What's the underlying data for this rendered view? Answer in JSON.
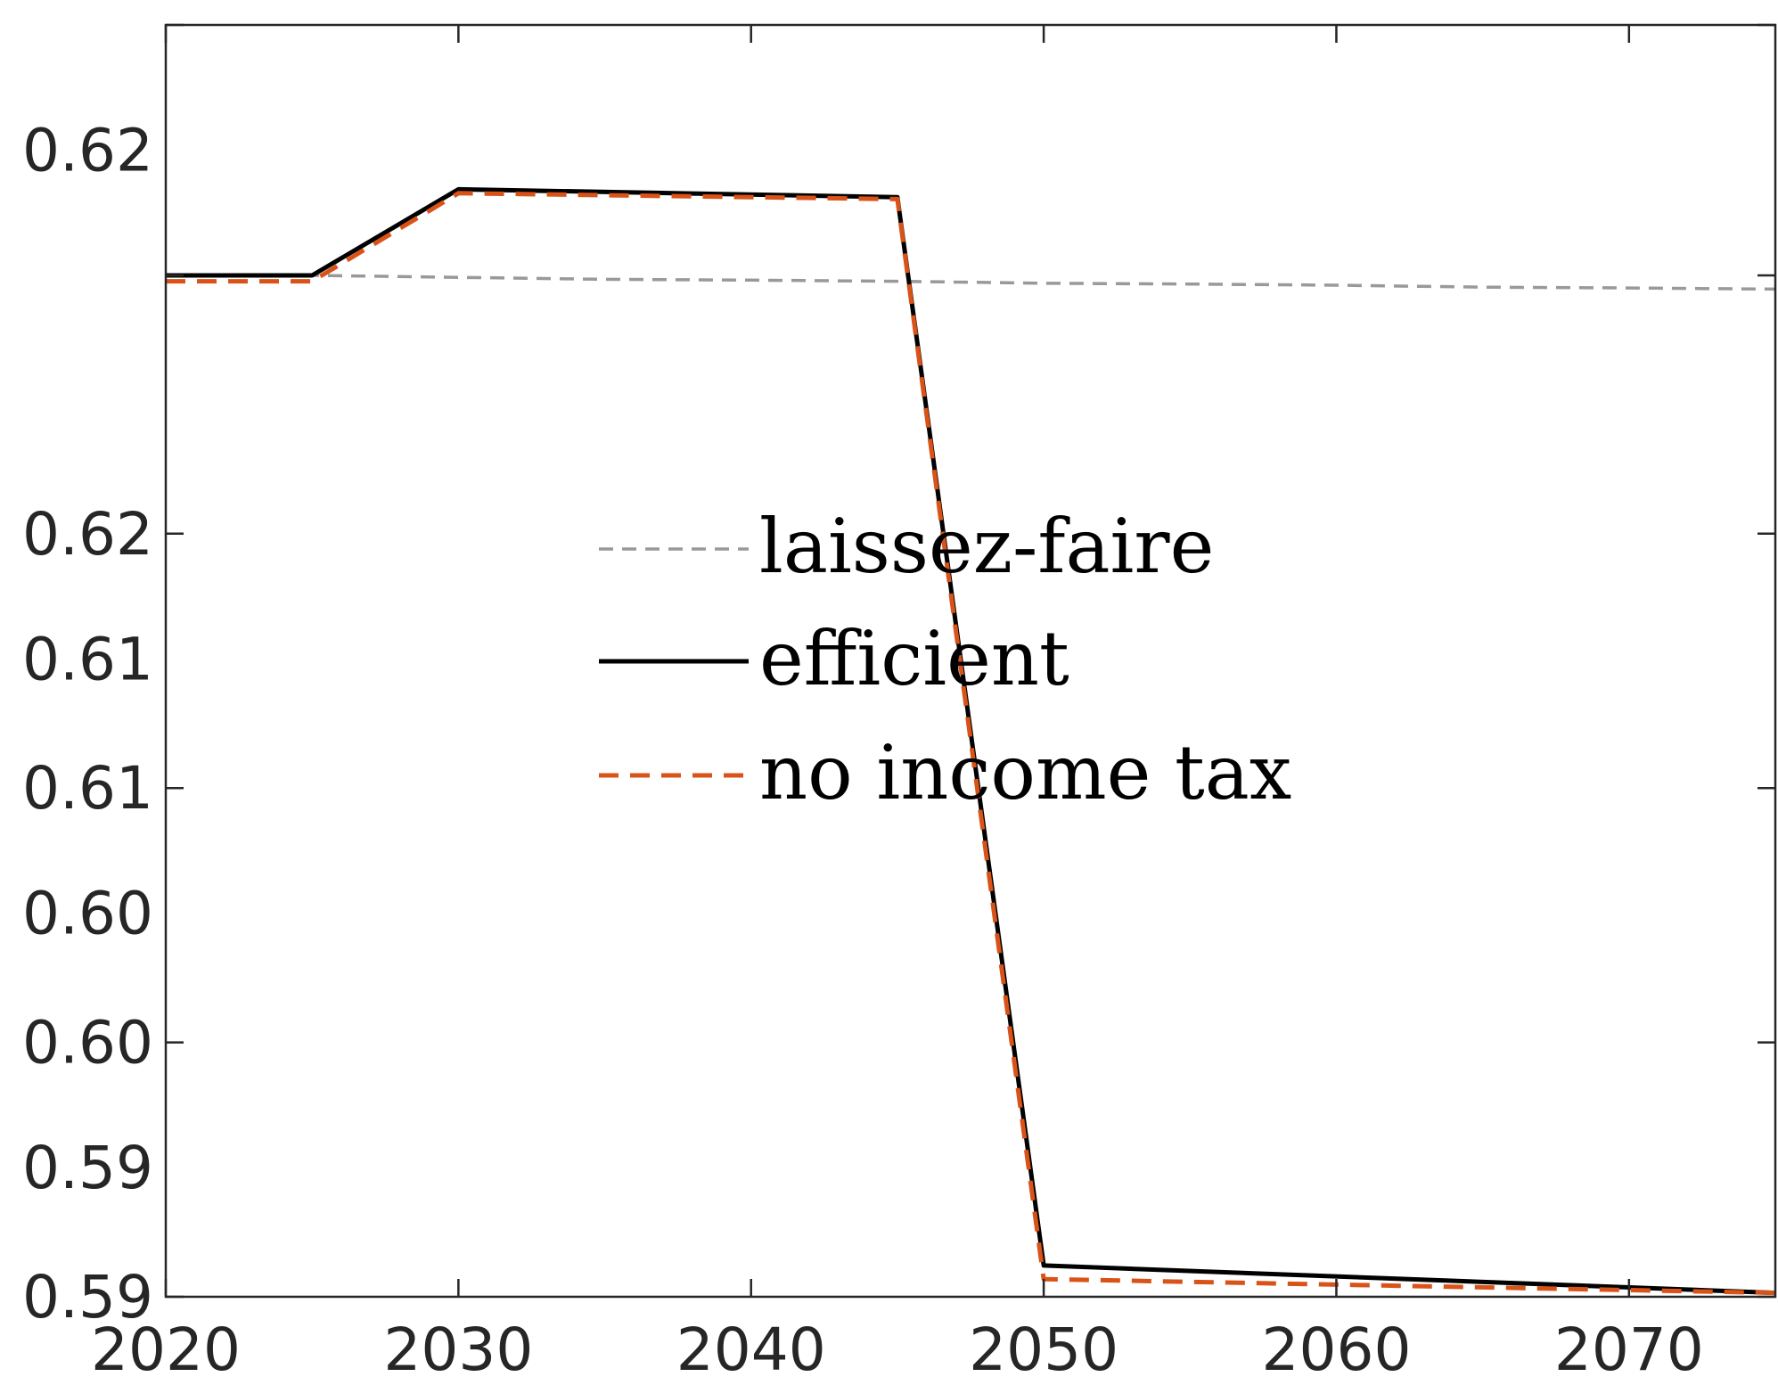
{
  "chart_data": {
    "type": "line",
    "title": "",
    "xlabel": "",
    "ylabel": "",
    "xlim": [
      2020,
      2075
    ],
    "ylim": [
      0.59,
      0.6225
    ],
    "x_ticks": [
      2020,
      2030,
      2040,
      2050,
      2060,
      2070
    ],
    "x_tick_labels": [
      "2020",
      "2030",
      "2040",
      "2050",
      "2060",
      "2070"
    ],
    "y_ticks": [
      0.59,
      0.5933,
      0.5965,
      0.5998,
      0.603,
      0.6063,
      0.6095,
      0.6128,
      0.6161,
      0.6193,
      0.6225
    ],
    "y_ticks_labeled": [
      0.59,
      0.5965,
      0.603,
      0.6095,
      0.6161,
      0.6225
    ],
    "y_tick_labels": [
      "0.59",
      "0.59",
      "0.60",
      "0.60",
      "0.61",
      "0.61",
      "0.62",
      "0.62"
    ],
    "y_tick_label_values": [
      0.59,
      0.5933,
      0.5965,
      0.5998,
      0.603,
      0.6063,
      0.6095,
      0.6193
    ],
    "grid": false,
    "box": true,
    "legend_placement": "center",
    "series": [
      {
        "name": "laissez-faire",
        "color": "#999999",
        "style": "dashed",
        "x": [
          2020,
          2025,
          2030,
          2035,
          2040,
          2045,
          2050,
          2055,
          2060,
          2065,
          2070,
          2075
        ],
        "y": [
          0.6161,
          0.6161,
          0.61605,
          0.616,
          0.61598,
          0.61595,
          0.6159,
          0.61588,
          0.61585,
          0.6158,
          0.61578,
          0.61575
        ]
      },
      {
        "name": "efficient",
        "color": "#000000",
        "style": "solid",
        "x": [
          2020,
          2025,
          2030,
          2045,
          2050,
          2075
        ],
        "y": [
          0.6161,
          0.6161,
          0.6183,
          0.6181,
          0.5908,
          0.5901
        ]
      },
      {
        "name": "no income tax",
        "color": "#D95319",
        "style": "dashed",
        "x": [
          2020,
          2025,
          2030,
          2045,
          2050,
          2075
        ],
        "y": [
          0.61595,
          0.61595,
          0.6182,
          0.61805,
          0.59045,
          0.5901
        ]
      }
    ]
  }
}
